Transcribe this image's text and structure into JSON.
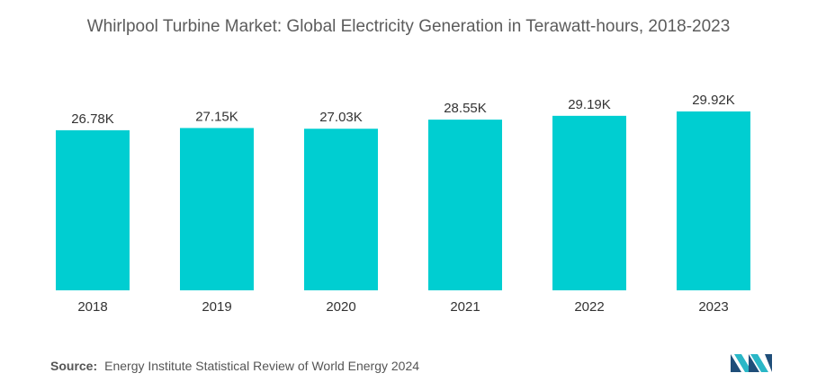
{
  "chart_data": {
    "type": "bar",
    "title": "Whirlpool Turbine Market: Global Electricity Generation in Terawatt-hours, 2018-2023",
    "categories": [
      "2018",
      "2019",
      "2020",
      "2021",
      "2022",
      "2023"
    ],
    "values": [
      26.78,
      27.15,
      27.03,
      28.55,
      29.19,
      29.92
    ],
    "value_labels": [
      "26.78K",
      "27.15K",
      "27.03K",
      "28.55K",
      "29.19K",
      "29.92K"
    ],
    "unit": "K",
    "xlabel": "",
    "ylabel": "",
    "ylim": [
      0,
      29.92
    ],
    "grid": false,
    "legend": "none",
    "bar_color": "#00ced1"
  },
  "source": {
    "label": "Source:",
    "text": "Energy Institute Statistical Review of World Energy 2024"
  },
  "logo": {
    "icon": "mordor-intelligence-logo-icon",
    "colors": [
      "#1f4e79",
      "#2ab7c7"
    ]
  }
}
